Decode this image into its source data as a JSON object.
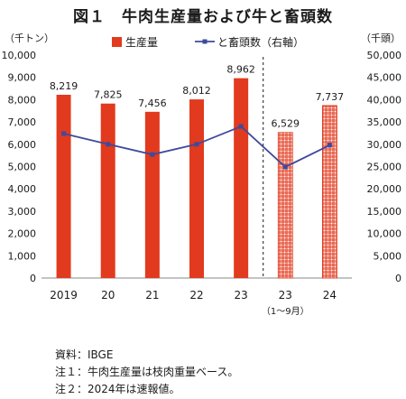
{
  "title": "図１　牛肉生産量および牛と畜頭数",
  "left_unit": "（千トン）",
  "right_unit": "（千頭）",
  "notes": [
    "資料：IBGE",
    "注１：牛肉生産量は枝肉重量ベース。",
    "注２：2024年は速報値。"
  ],
  "colors": {
    "bar": "#e23a1e",
    "bar_edge": "#b82a12",
    "line": "#3f4a9b"
  },
  "chart_data": {
    "type": "bar",
    "categories": [
      "2019",
      "20",
      "21",
      "22",
      "23",
      "23",
      "24"
    ],
    "category_sublabels": [
      "",
      "",
      "",
      "",
      "",
      "（1～9月）",
      ""
    ],
    "legend": [
      "生産量",
      "と畜頭数（右軸）"
    ],
    "legend_position": "top",
    "series": [
      {
        "name": "生産量",
        "type": "bar",
        "axis": "left",
        "values": [
          8219,
          7825,
          7456,
          8012,
          8962,
          6529,
          7737
        ],
        "labels": [
          "8,219",
          "7,825",
          "7,456",
          "8,012",
          "8,962",
          "6,529",
          "7,737"
        ],
        "hatched": [
          false,
          false,
          false,
          false,
          false,
          true,
          true
        ]
      },
      {
        "name": "と畜頭数（右軸）",
        "type": "line",
        "axis": "right",
        "values": [
          32400,
          30000,
          27700,
          30000,
          34000,
          24900,
          29800
        ]
      }
    ],
    "ylim": [
      0,
      10000
    ],
    "y2lim": [
      0,
      50000
    ],
    "yticks": [
      "0",
      "1,000",
      "2,000",
      "3,000",
      "4,000",
      "5,000",
      "6,000",
      "7,000",
      "8,000",
      "9,000",
      "10,000"
    ],
    "y2ticks": [
      "0",
      "5,000",
      "10,000",
      "15,000",
      "20,000",
      "25,000",
      "30,000",
      "35,000",
      "40,000",
      "45,000",
      "50,000"
    ],
    "divider_after_index": 4,
    "grid": false
  }
}
